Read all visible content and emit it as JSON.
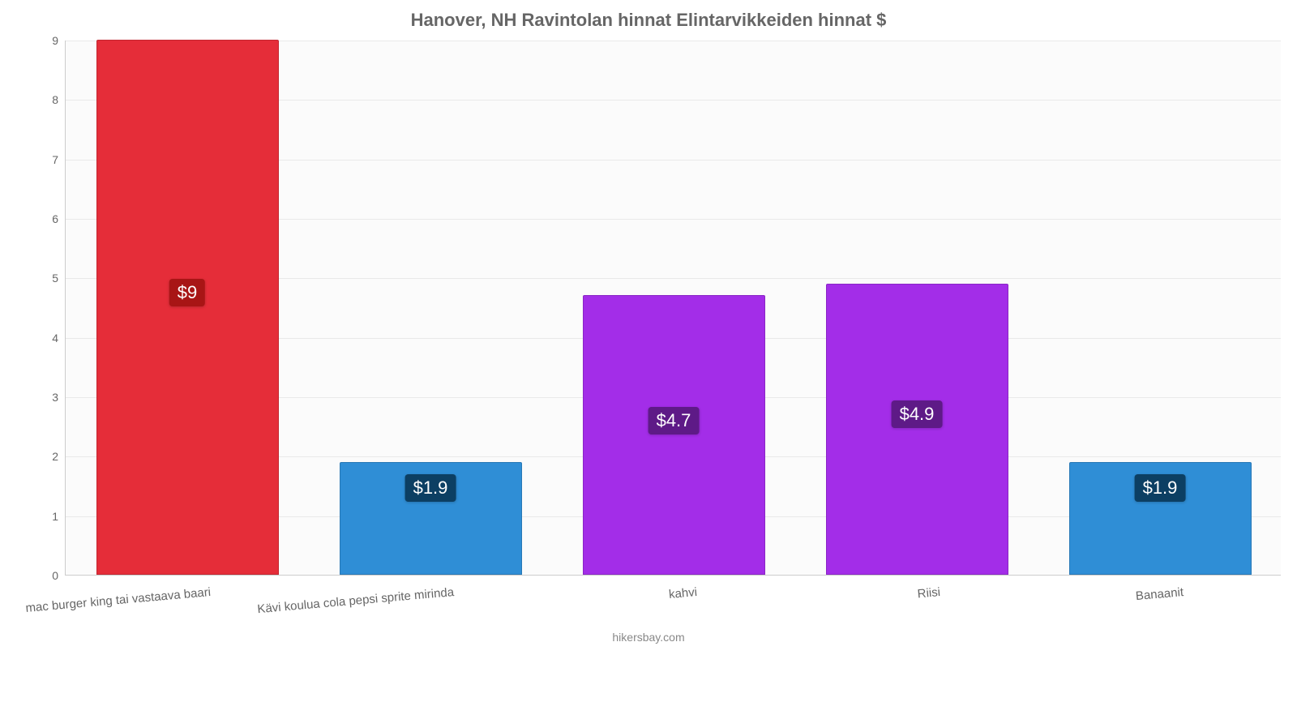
{
  "chart": {
    "type": "bar",
    "title": "Hanover, NH Ravintolan hinnat Elintarvikkeiden hinnat $",
    "title_fontsize": 22,
    "title_color": "#666666",
    "footer": "hikersbay.com",
    "footer_color": "#888888",
    "background_color": "#fbfbfb",
    "axis_color": "#cccccc",
    "grid_color": "#e9e9e9",
    "tick_label_color": "#666666",
    "tick_fontsize": 14,
    "xlabel_fontsize": 15,
    "xlabel_rotation_deg": -5,
    "ylim": [
      0,
      9
    ],
    "ytick_step": 1,
    "bar_width_ratio": 0.75,
    "categories": [
      "mac burger king tai vastaava baari",
      "Kävi koulua cola pepsi sprite mirinda",
      "kahvi",
      "Riisi",
      "Banaanit"
    ],
    "values": [
      9,
      1.9,
      4.7,
      4.9,
      1.9
    ],
    "display_values": [
      "$9",
      "$1.9",
      "$4.7",
      "$4.9",
      "$1.9"
    ],
    "bar_colors": [
      "#e52d39",
      "#2f8ed6",
      "#a32de8",
      "#a32de8",
      "#2f8ed6"
    ],
    "label_bg_colors": [
      "#a81515",
      "#0c3f63",
      "#5e1a87",
      "#5e1a87",
      "#0c3f63"
    ],
    "value_label_fontsize": 22,
    "value_label_color": "#ffffff"
  }
}
